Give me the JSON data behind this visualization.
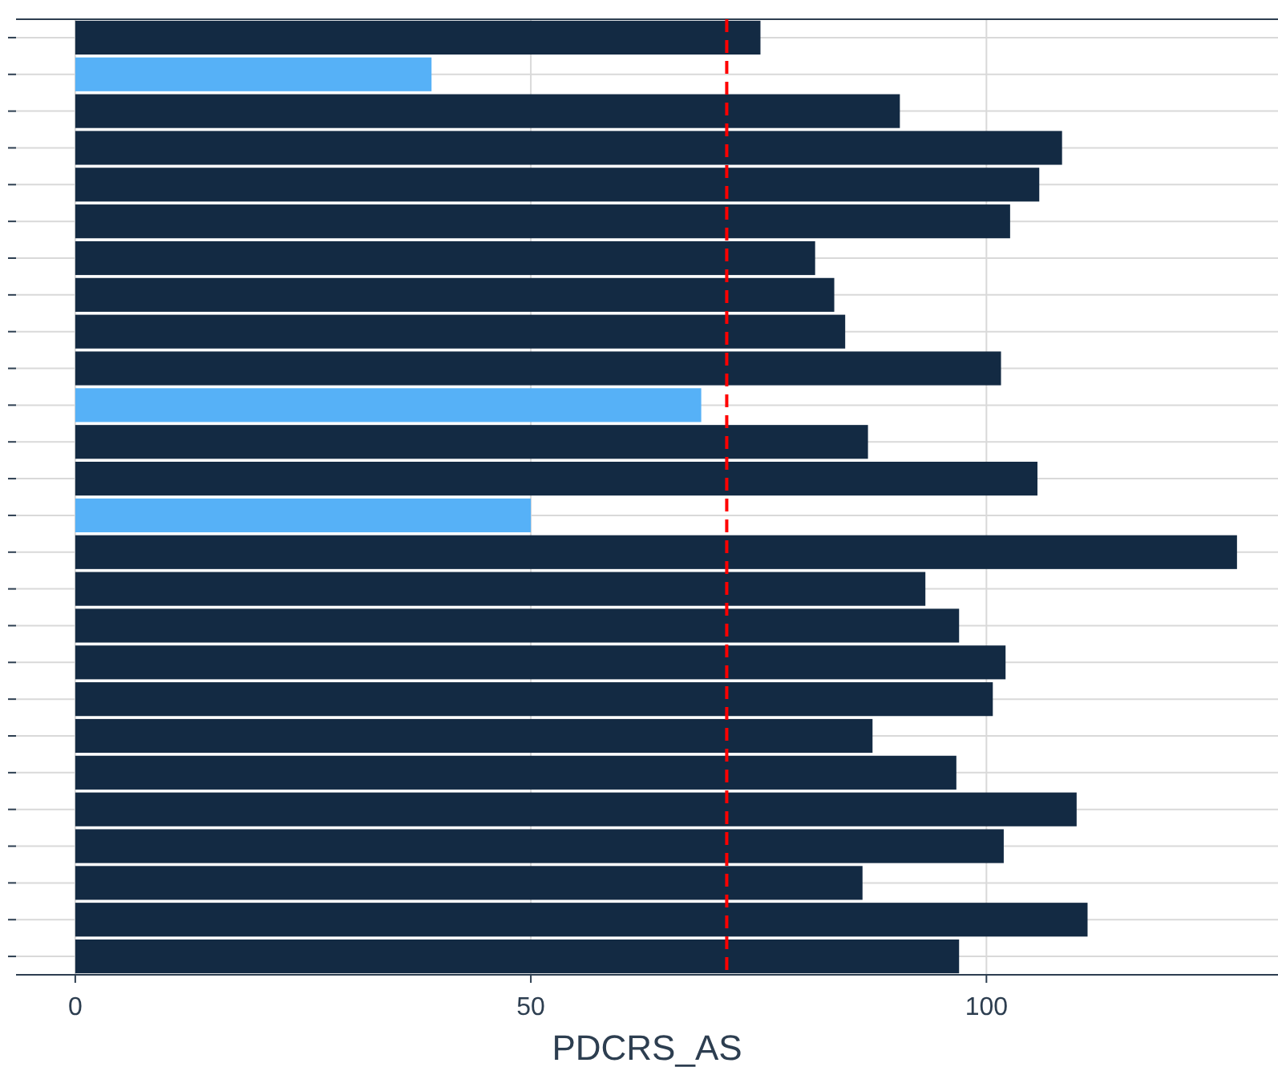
{
  "chart_data": {
    "type": "bar",
    "orientation": "horizontal",
    "xlabel": "PDCRS_AS",
    "categories": [
      null,
      null,
      null,
      null,
      null,
      null,
      null,
      null,
      null,
      null,
      null,
      null,
      null,
      null,
      null,
      null,
      null,
      null,
      null,
      null,
      null,
      null,
      null,
      null,
      null,
      null
    ],
    "values": [
      75.2,
      39.1,
      90.5,
      108.3,
      105.8,
      102.6,
      81.2,
      83.3,
      84.5,
      101.6,
      68.7,
      87.0,
      105.6,
      50.0,
      127.5,
      93.3,
      97.0,
      102.1,
      100.7,
      87.5,
      96.7,
      109.9,
      101.9,
      86.4,
      111.1,
      97.0
    ],
    "colors": [
      "#132a43",
      "#56b1f7",
      "#132a43",
      "#132a43",
      "#132a43",
      "#132a43",
      "#132a43",
      "#132a43",
      "#132a43",
      "#132a43",
      "#56b1f7",
      "#132a43",
      "#132a43",
      "#56b1f7",
      "#132a43",
      "#132a43",
      "#132a43",
      "#132a43",
      "#132a43",
      "#132a43",
      "#132a43",
      "#132a43",
      "#132a43",
      "#132a43",
      "#132a43",
      "#132a43"
    ],
    "xlim": [
      -6.5,
      132
    ],
    "xticks": [
      0,
      50,
      100
    ],
    "grid": true,
    "tick_labels": "x",
    "ref_lines": [
      {
        "axis": "x",
        "value": 71.5,
        "color": "#ff0000",
        "line_style": "dashed"
      }
    ]
  }
}
